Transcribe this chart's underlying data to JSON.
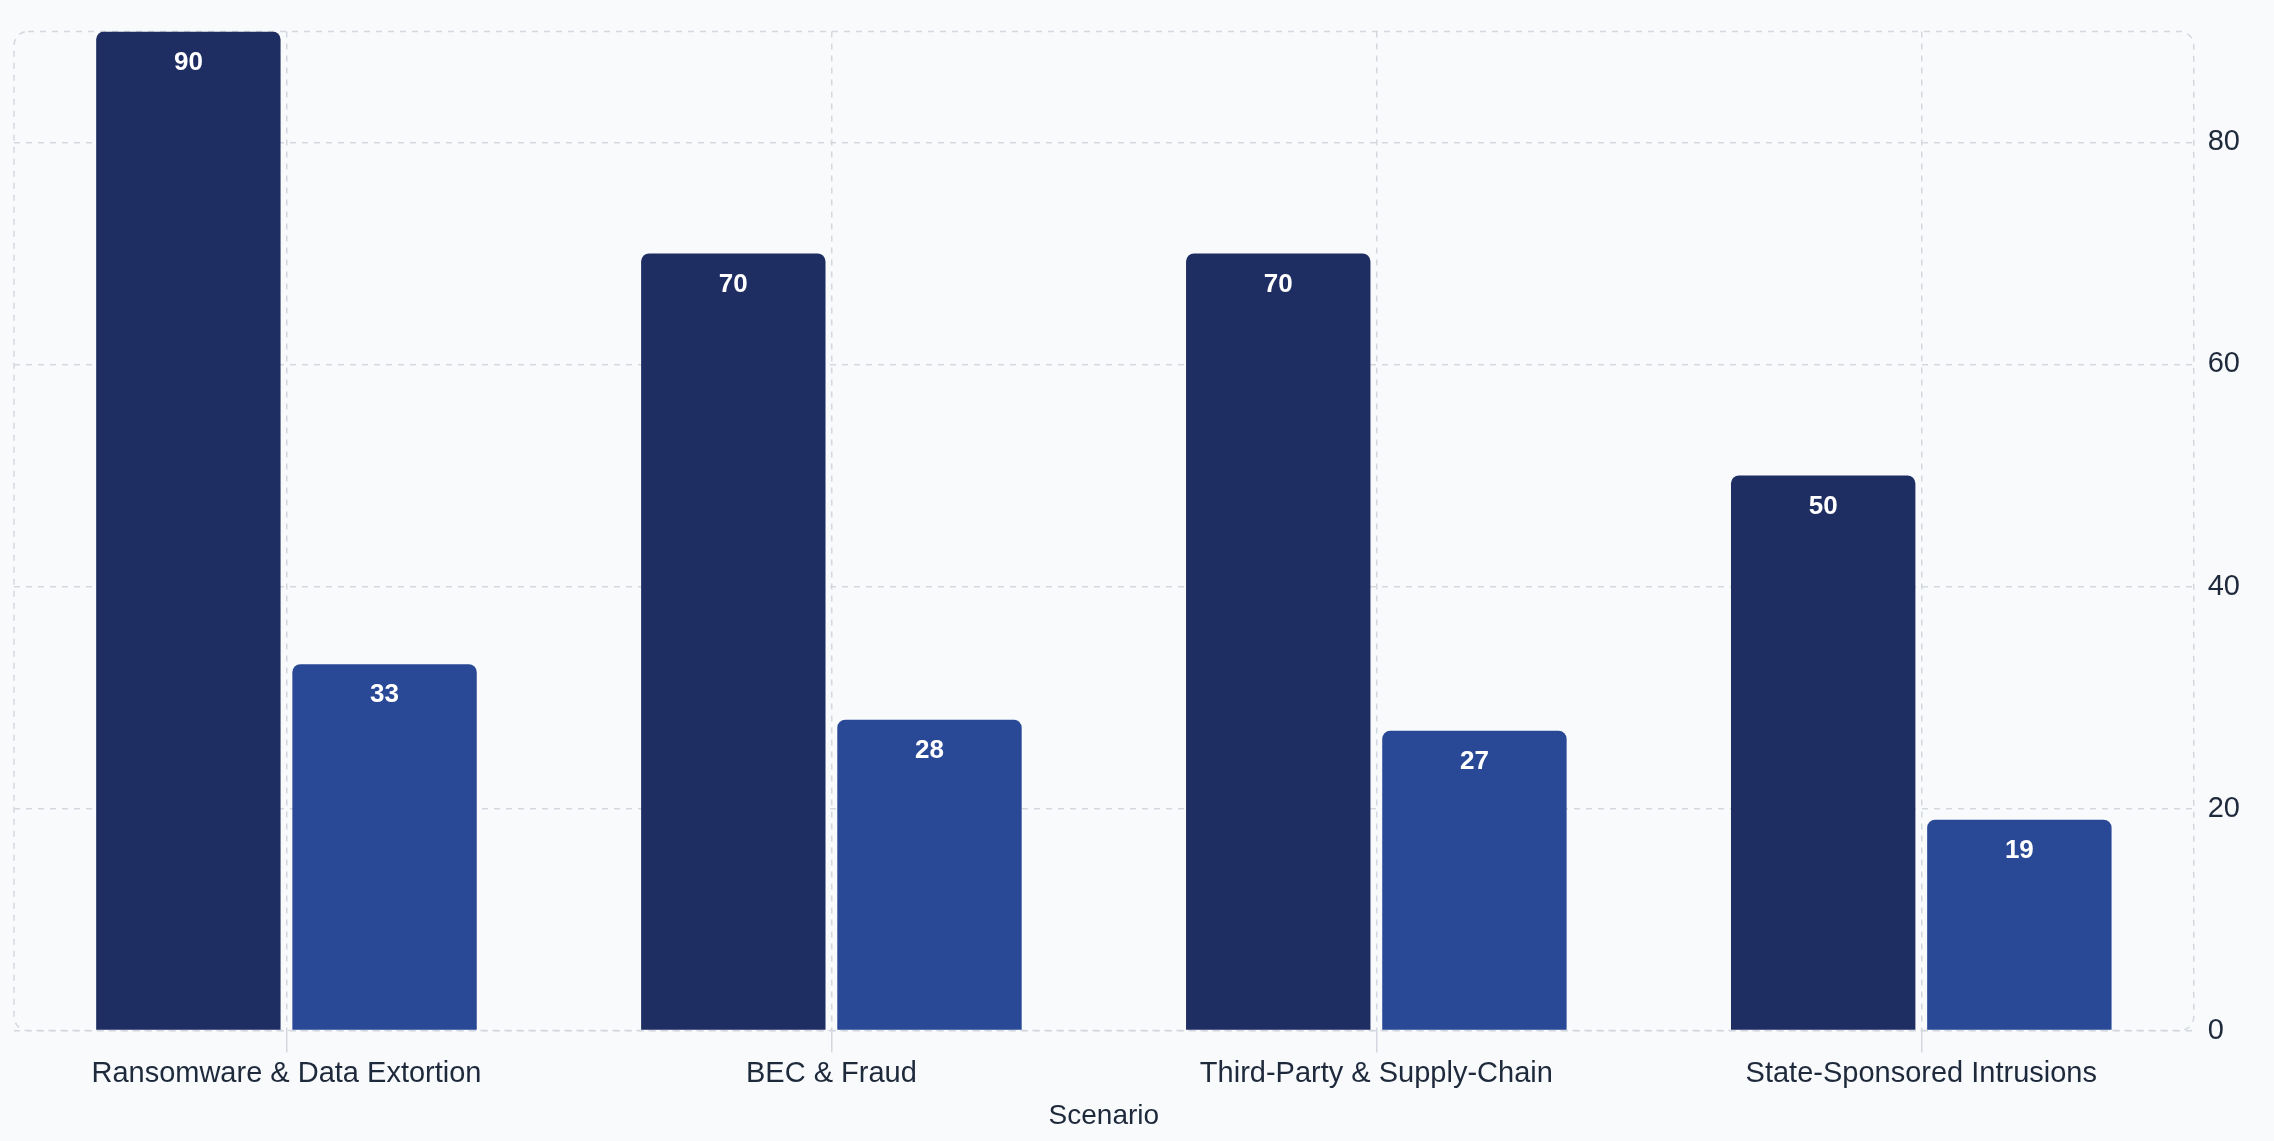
{
  "chart_data": {
    "type": "bar",
    "xlabel": "Scenario",
    "categories": [
      "Ransomware & Data Extortion",
      "BEC & Fraud",
      "Third-Party & Supply-Chain",
      "State-Sponsored Intrusions"
    ],
    "series": [
      {
        "color": "#1e2d62",
        "values": [
          90,
          70,
          70,
          50
        ]
      },
      {
        "color": "#294896",
        "values": [
          33,
          28,
          27,
          19
        ]
      }
    ],
    "ylim": [
      0,
      90
    ],
    "yticks": [
      0,
      20,
      40,
      60,
      80
    ],
    "grid": true,
    "legend": false,
    "data_labels": true
  }
}
